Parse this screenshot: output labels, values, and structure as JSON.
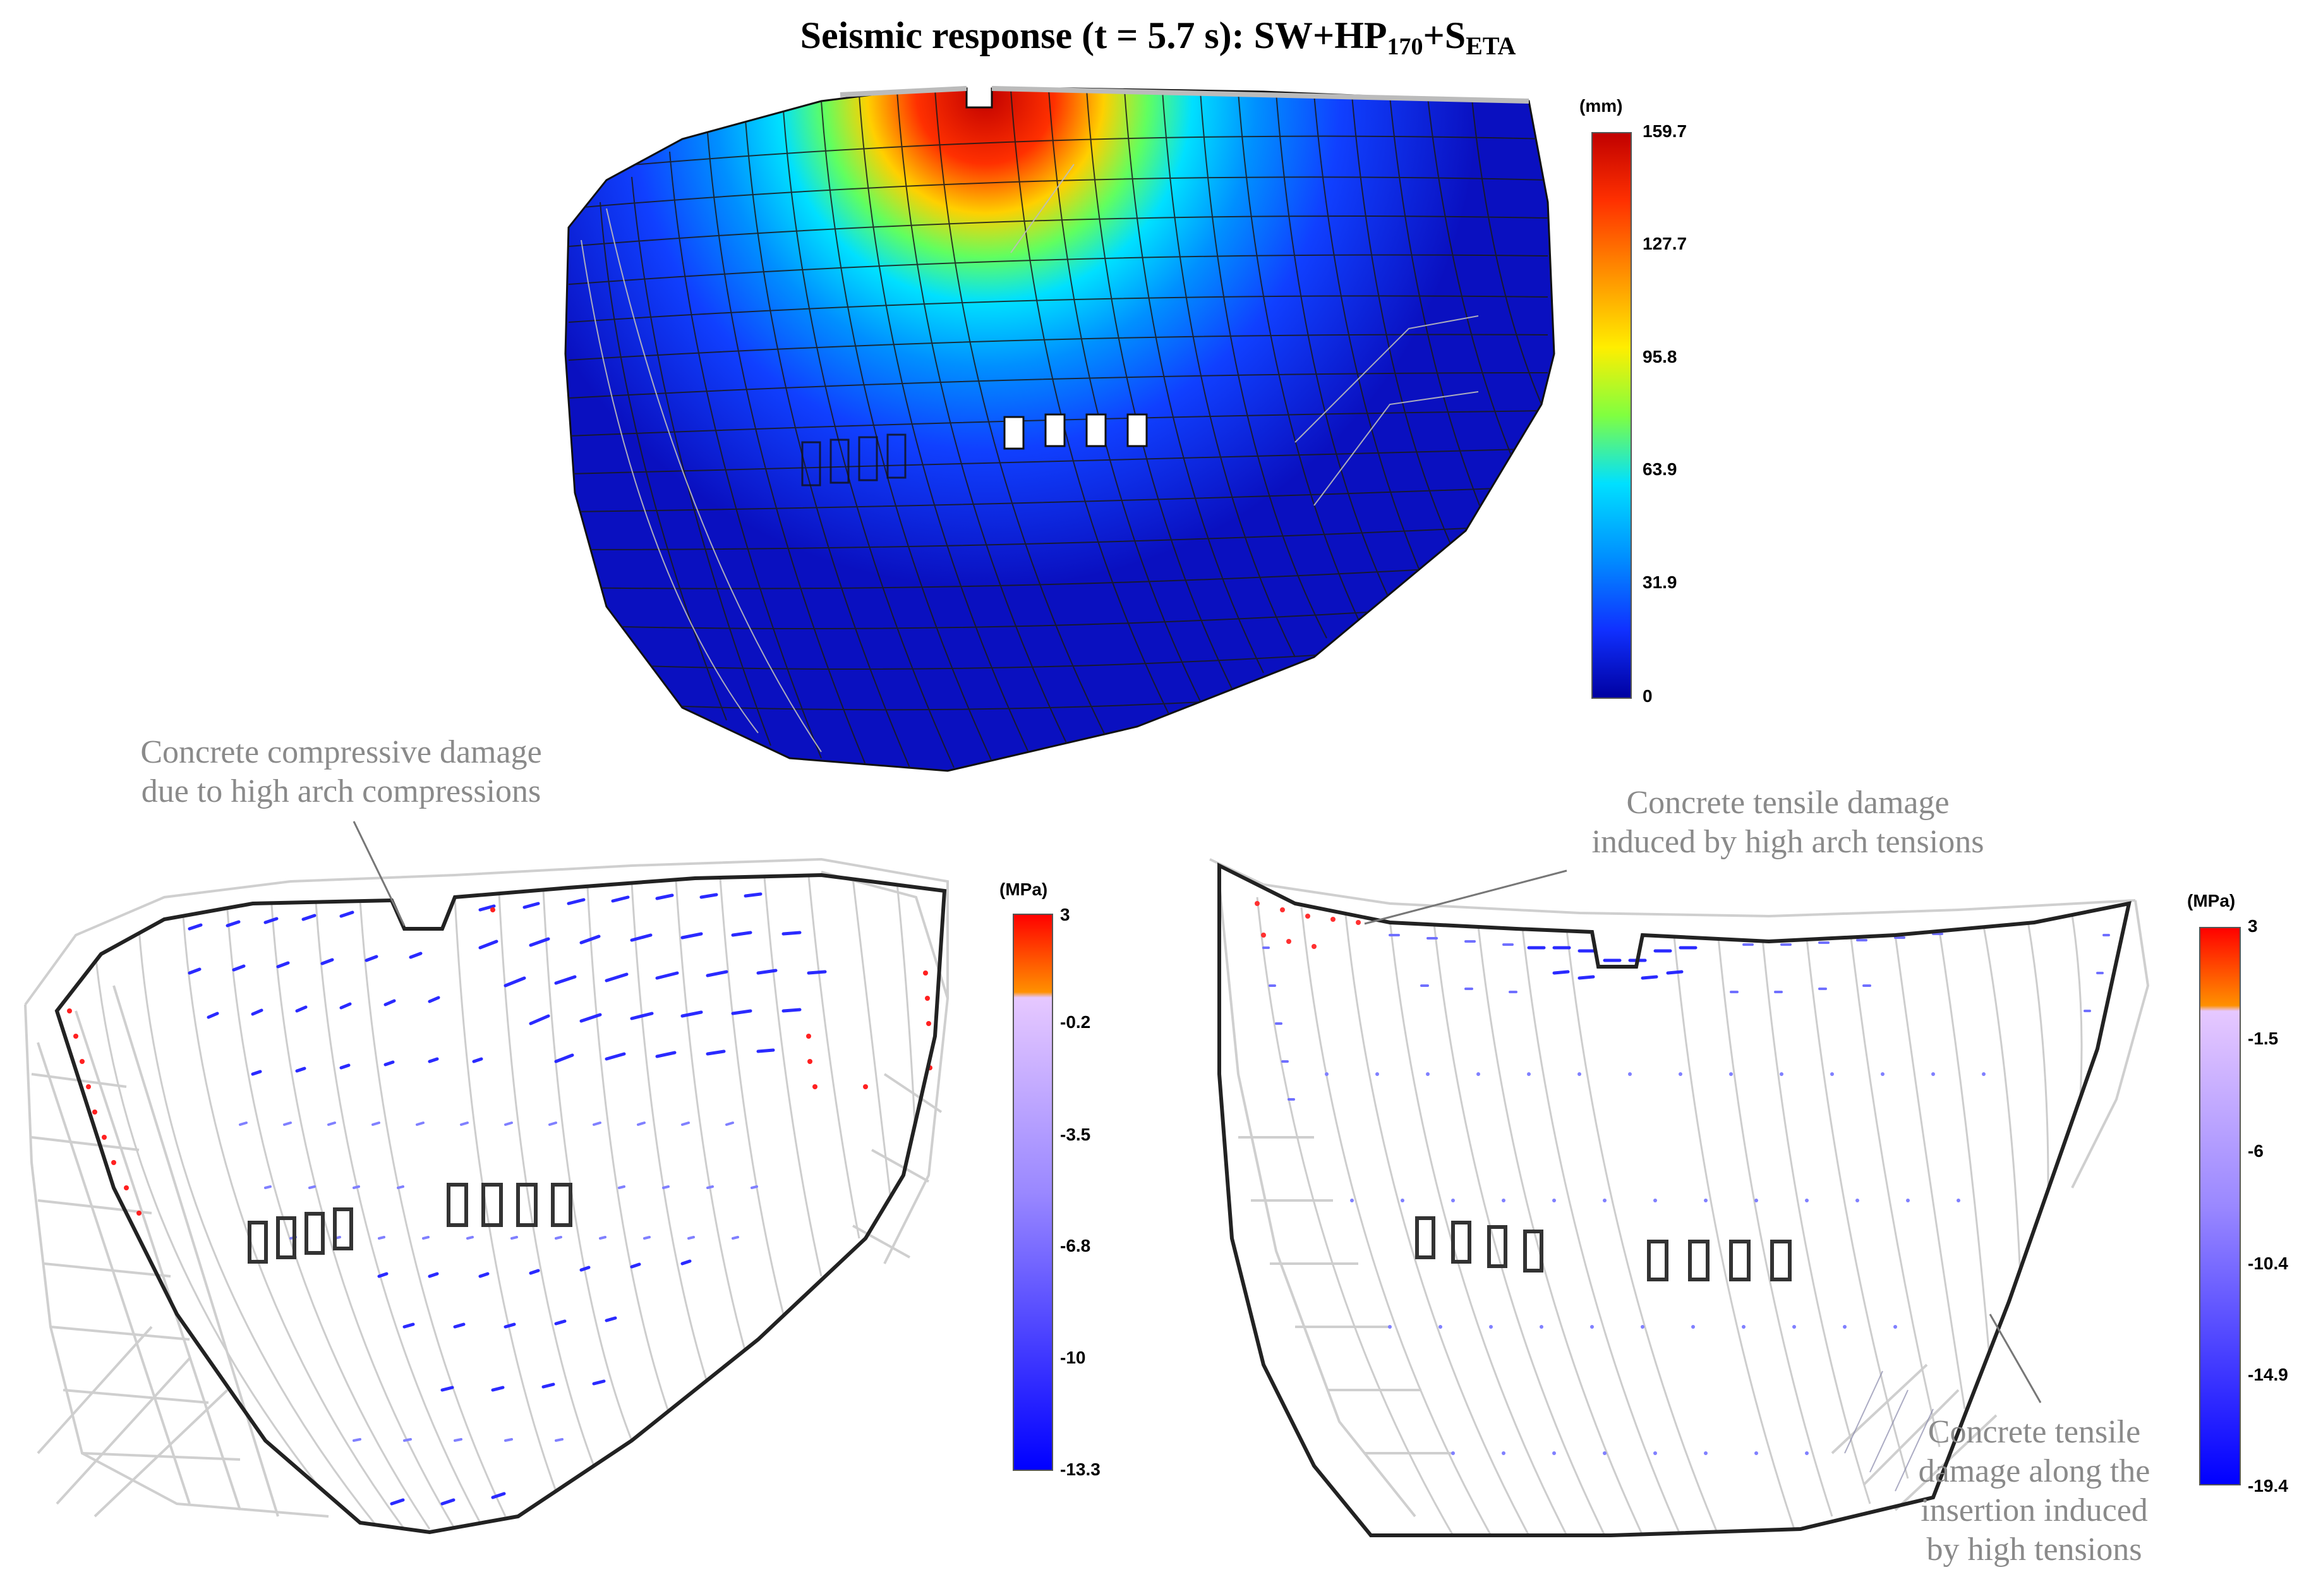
{
  "title": {
    "prefix": "Seismic response (t = 5.7 s): SW+HP",
    "hp_sub": "170",
    "plus": "+S",
    "s_sub": "ETA"
  },
  "top_panel": {
    "colorbar": {
      "unit": "(mm)",
      "ticks": [
        "159.7",
        "127.7",
        "95.8",
        "63.9",
        "31.9",
        "0"
      ],
      "colors": [
        "#cc0000",
        "#ff4000",
        "#ffd000",
        "#80ff40",
        "#00e0ff",
        "#0090ff",
        "#1040ff",
        "#0000a0"
      ]
    }
  },
  "bottom_left": {
    "annotation": [
      "Concrete compressive damage",
      "due to high arch compressions"
    ],
    "colorbar": {
      "unit": "(MPa)",
      "ticks": [
        "3",
        "-0.2",
        "-3.5",
        "-6.8",
        "-10",
        "-13.3"
      ]
    }
  },
  "bottom_right": {
    "annotation_top": [
      "Concrete tensile damage",
      "induced by high arch tensions"
    ],
    "annotation_bottom": [
      "Concrete tensile",
      "damage along the",
      "insertion induced",
      "by high tensions"
    ],
    "colorbar": {
      "unit": "(MPa)",
      "ticks": [
        "3",
        "-1.5",
        "-6",
        "-10.4",
        "-14.9",
        "-19.4"
      ]
    }
  },
  "colors": {
    "mesh_dark": "#222222",
    "mesh_light": "#c8c8c8",
    "tension": "#ff0000",
    "compression": "#1a1aff",
    "annotation": "#8a8a8a"
  }
}
